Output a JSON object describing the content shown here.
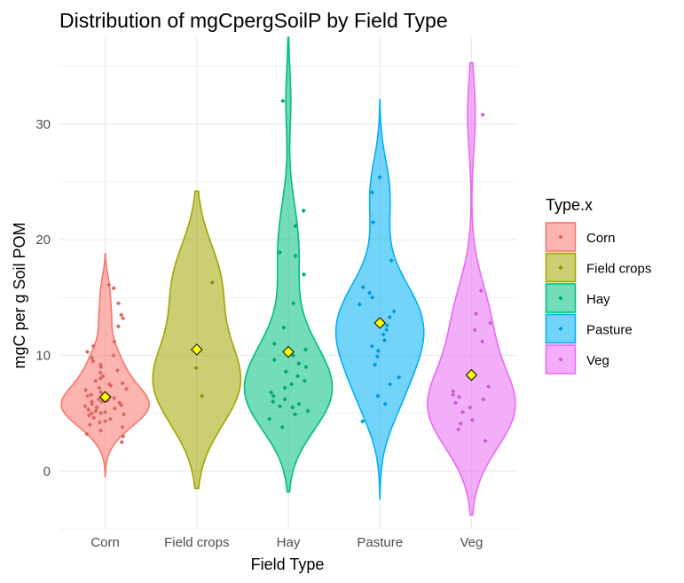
{
  "chart_data": {
    "type": "violin",
    "title": "Distribution of mgCpergSoilP by Field Type",
    "xlabel": "Field Type",
    "ylabel": "mgC per g Soil POM",
    "ylim": [
      -5,
      37.5
    ],
    "yticks": [
      "0",
      "10",
      "20",
      "30"
    ],
    "categories": [
      "Corn",
      "Field crops",
      "Hay",
      "Pasture",
      "Veg"
    ],
    "legend": {
      "title": "Type.x",
      "position": "right"
    },
    "grid": true,
    "mean_marker_color": "#FFFF00",
    "series": [
      {
        "name": "Corn",
        "color": "#F8766D",
        "mean": 6.4,
        "range": [
          -0.5,
          18.8
        ],
        "points": [
          2.5,
          3,
          3.2,
          3.5,
          3.8,
          4,
          4.2,
          4.3,
          4.5,
          4.6,
          4.8,
          4.9,
          5,
          5,
          5.1,
          5.2,
          5.3,
          5.4,
          5.5,
          5.5,
          5.6,
          5.7,
          5.8,
          5.9,
          6,
          6,
          6.1,
          6.2,
          6.3,
          6.4,
          6.5,
          6.6,
          6.8,
          7,
          7.1,
          7.2,
          7.4,
          7.5,
          7.6,
          7.8,
          8,
          8.2,
          8.5,
          8.7,
          9,
          9.2,
          9.5,
          9.8,
          10,
          10.3,
          10.8,
          11.2,
          12.5,
          13.2,
          13.5,
          14.5,
          15.8,
          16.1
        ]
      },
      {
        "name": "Field crops",
        "color": "#A3A500",
        "mean": 10.5,
        "range": [
          -1.5,
          24.2
        ],
        "points": [
          6.5,
          8.9,
          16.3
        ]
      },
      {
        "name": "Hay",
        "color": "#00BF7D",
        "mean": 10.3,
        "range": [
          -1.8,
          37.5
        ],
        "points": [
          3.8,
          4.5,
          4.9,
          5.2,
          5.5,
          5.6,
          5.8,
          6,
          6.2,
          6.5,
          6.8,
          7.2,
          7.5,
          7.8,
          8.2,
          8.6,
          9,
          9.3,
          9.6,
          10,
          10.5,
          11,
          12.4,
          14.5,
          17,
          18.6,
          18.9,
          21.2,
          22.5,
          32
        ]
      },
      {
        "name": "Pasture",
        "color": "#00B0F6",
        "mean": 12.8,
        "range": [
          -2.4,
          32.1
        ],
        "points": [
          4.3,
          5.8,
          6.5,
          7.5,
          8.1,
          9.2,
          9.9,
          10.4,
          10.8,
          11.3,
          11.8,
          12.2,
          12.6,
          13.3,
          13.8,
          14.4,
          15,
          15.4,
          15.9,
          18.2,
          21.5,
          24.1,
          25.4
        ]
      },
      {
        "name": "Veg",
        "color": "#E76BF3",
        "mean": 8.3,
        "range": [
          -3.8,
          35.3
        ],
        "points": [
          2.6,
          3.6,
          4.1,
          4.4,
          5.1,
          5.5,
          5.9,
          6.2,
          6.4,
          6.6,
          6.9,
          7.3,
          11.2,
          12.2,
          12.8,
          13.6,
          15.6,
          30.8
        ]
      }
    ]
  }
}
